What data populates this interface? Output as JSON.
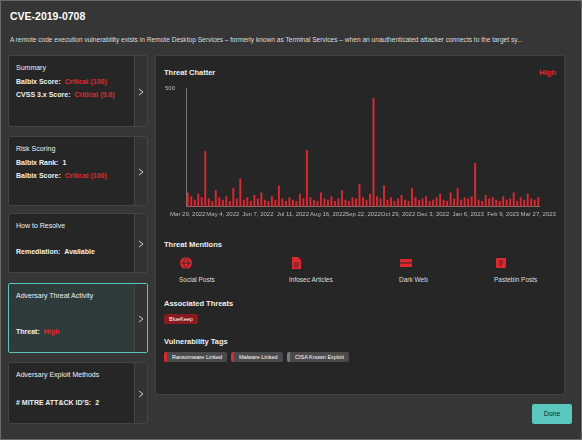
{
  "header": {
    "title": "CVE-2019-0708",
    "description": "A remote code execution vulnerability exists in Remote Desktop Services – formerly known as Terminal Services – when an unauthenticated attacker connects to the target sy..."
  },
  "cards": [
    {
      "title": "Summary",
      "rows": [
        {
          "label": "Balbix Score:",
          "value": "Critical (100)",
          "color": "#e0262f"
        },
        {
          "label": "CVSS 3.x Score:",
          "value": "Critical (9.8)",
          "color": "#e0262f"
        }
      ]
    },
    {
      "title": "Risk Scoring",
      "rows": [
        {
          "label": "Balbix Rank:",
          "value": "1",
          "color": "#f0f0f0"
        },
        {
          "label": "Balbix Score:",
          "value": "Critical (100)",
          "color": "#e0262f"
        }
      ]
    },
    {
      "title": "How to Resolve",
      "rows": [
        {
          "label": "Remediation:",
          "value": "Available",
          "color": "#f0f0f0"
        }
      ]
    },
    {
      "title": "Adversary Threat Activity",
      "rows": [
        {
          "label": "Threat:",
          "value": "High",
          "color": "#e0262f"
        }
      ]
    },
    {
      "title": "Adversary Exploit Methods",
      "rows": [
        {
          "label": "# MITRE ATT&CK ID'S:",
          "value": "2",
          "color": "#f0f0f0"
        }
      ]
    }
  ],
  "threat_level": "High",
  "chart_data": {
    "type": "bar",
    "title": "Threat Chatter",
    "color": "#e0262f",
    "grid": false,
    "ylim": [
      0,
      500
    ],
    "yticks": [
      500
    ],
    "categories": [
      "Mar 29, 2022",
      null,
      null,
      null,
      null,
      null,
      null,
      null,
      null,
      null,
      "May 4, 2022",
      null,
      null,
      null,
      null,
      null,
      null,
      null,
      null,
      null,
      "Jun 7, 2022",
      null,
      null,
      null,
      null,
      null,
      null,
      null,
      null,
      null,
      "Jul 11, 2022",
      null,
      null,
      null,
      null,
      null,
      null,
      null,
      null,
      null,
      "Aug 16, 2022",
      null,
      null,
      null,
      null,
      null,
      null,
      null,
      null,
      null,
      "Sep 22, 2022",
      null,
      null,
      null,
      null,
      null,
      null,
      null,
      null,
      null,
      "Oct 29, 2022",
      null,
      null,
      null,
      null,
      null,
      null,
      null,
      null,
      null,
      "Dec 3, 2022",
      null,
      null,
      null,
      null,
      null,
      null,
      null,
      null,
      null,
      "Jan 6, 2023",
      null,
      null,
      null,
      null,
      null,
      null,
      null,
      null,
      null,
      "Feb 9, 2023",
      null,
      null,
      null,
      null,
      null,
      null,
      null,
      null,
      null,
      "Mar 27, 2023"
    ],
    "values": [
      60,
      45,
      30,
      55,
      40,
      235,
      35,
      25,
      70,
      40,
      30,
      45,
      25,
      80,
      35,
      120,
      30,
      40,
      25,
      50,
      35,
      60,
      30,
      25,
      45,
      30,
      90,
      35,
      25,
      40,
      30,
      25,
      55,
      35,
      240,
      40,
      30,
      25,
      60,
      35,
      30,
      45,
      25,
      35,
      70,
      30,
      25,
      40,
      35,
      95,
      40,
      30,
      55,
      460,
      45,
      35,
      90,
      30,
      40,
      25,
      35,
      50,
      30,
      25,
      80,
      40,
      30,
      35,
      45,
      25,
      30,
      40,
      55,
      30,
      25,
      60,
      35,
      80,
      30,
      40,
      35,
      45,
      185,
      30,
      25,
      50,
      35,
      40,
      30,
      25,
      45,
      30,
      35,
      60,
      25,
      40,
      30,
      55,
      35,
      30,
      40
    ]
  },
  "threat_mentions": {
    "title": "Threat Mentions",
    "items": [
      "Social Posts",
      "Infosec Articles",
      "Dark Web",
      "Pastebin Posts"
    ]
  },
  "associated_threats": {
    "title": "Associated Threats",
    "tags": [
      "BlueKeep"
    ]
  },
  "vulnerability_tags": {
    "title": "Vulnerability Tags",
    "tags": [
      {
        "text": "Ransomware Linked",
        "color": "#e0262f"
      },
      {
        "text": "Malware Linked",
        "color": "#e0262f"
      },
      {
        "text": "CISA Known Exploit",
        "color": "#7a7a7a"
      }
    ]
  },
  "button": "Done"
}
